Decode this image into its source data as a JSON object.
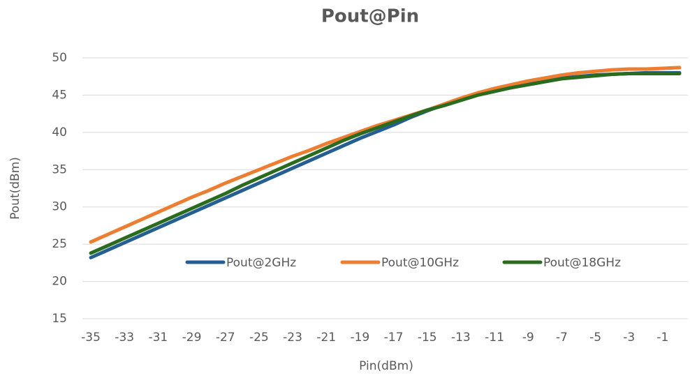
{
  "chart_data": {
    "type": "line",
    "title": "Pout@Pin",
    "x_label": "Pin(dBm)",
    "y_label": "Pout(dBm)",
    "x": [
      -35,
      -34,
      -33,
      -32,
      -31,
      -30,
      -29,
      -28,
      -27,
      -26,
      -25,
      -24,
      -23,
      -22,
      -21,
      -20,
      -19,
      -18,
      -17,
      -16,
      -15,
      -14,
      -13,
      -12,
      -11,
      -10,
      -9,
      -8,
      -7,
      -6,
      -5,
      -4,
      -3,
      -2,
      -1,
      0
    ],
    "series": [
      {
        "name": "Pout@2GHz",
        "color": "#255e91",
        "values": [
          23.2,
          24.2,
          25.2,
          26.2,
          27.2,
          28.2,
          29.2,
          30.2,
          31.2,
          32.2,
          33.2,
          34.2,
          35.2,
          36.2,
          37.2,
          38.2,
          39.2,
          40.1,
          41.0,
          42.0,
          42.9,
          43.7,
          44.4,
          45.2,
          45.8,
          46.2,
          46.6,
          47.0,
          47.3,
          47.5,
          47.7,
          47.8,
          47.9,
          48.0,
          48.0,
          48.0
        ]
      },
      {
        "name": "Pout@10GHz",
        "color": "#ed7d31",
        "values": [
          25.3,
          26.3,
          27.3,
          28.3,
          29.3,
          30.3,
          31.3,
          32.2,
          33.2,
          34.1,
          35.0,
          35.9,
          36.8,
          37.6,
          38.5,
          39.3,
          40.1,
          40.9,
          41.6,
          42.3,
          43.0,
          43.8,
          44.6,
          45.3,
          45.9,
          46.4,
          46.9,
          47.3,
          47.7,
          48.0,
          48.2,
          48.4,
          48.5,
          48.5,
          48.6,
          48.7
        ]
      },
      {
        "name": "Pout@18GHz",
        "color": "#2a6b1e",
        "values": [
          23.8,
          24.8,
          25.8,
          26.8,
          27.8,
          28.8,
          29.8,
          30.8,
          31.8,
          32.9,
          33.9,
          34.9,
          35.9,
          36.9,
          37.9,
          38.9,
          39.8,
          40.6,
          41.4,
          42.2,
          43.0,
          43.6,
          44.3,
          45.0,
          45.5,
          46.0,
          46.4,
          46.8,
          47.2,
          47.4,
          47.6,
          47.8,
          47.9,
          47.9,
          47.9,
          47.9
        ]
      }
    ],
    "xlim": [
      -35.5,
      0.5
    ],
    "xticks": [
      -35,
      -33,
      -31,
      -29,
      -27,
      -25,
      -23,
      -21,
      -19,
      -17,
      -15,
      -13,
      -11,
      -9,
      -7,
      -5,
      -3,
      -1
    ],
    "ylim": [
      15,
      50
    ],
    "yticks": [
      15,
      20,
      25,
      30,
      35,
      40,
      45,
      50
    ],
    "grid": true,
    "legend": "inside"
  }
}
